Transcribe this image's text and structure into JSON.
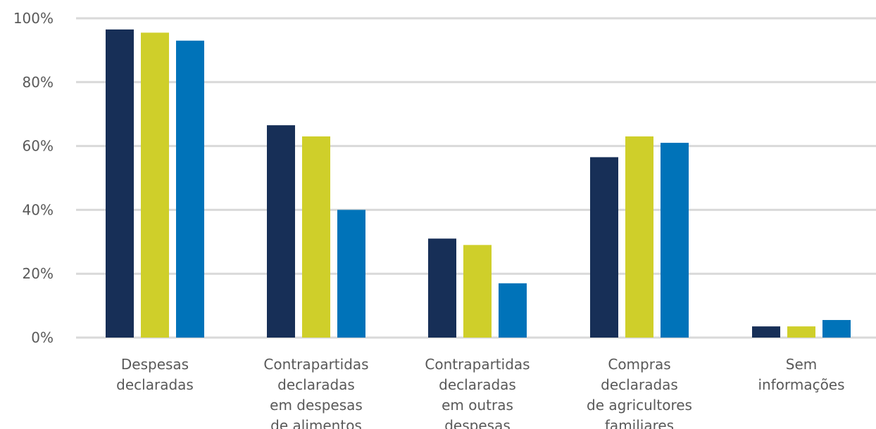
{
  "chart_data": {
    "type": "bar",
    "title": "",
    "xlabel": "",
    "ylabel": "",
    "ylim": [
      0,
      100
    ],
    "yticks": [
      "0%",
      "20%",
      "40%",
      "60%",
      "80%",
      "100%"
    ],
    "grid": true,
    "legend": "none",
    "categories": [
      [
        "Despesas",
        "declaradas"
      ],
      [
        "Contrapartidas",
        "declaradas",
        "em despesas",
        "de alimentos"
      ],
      [
        "Contrapartidas",
        "declaradas",
        "em outras",
        "despesas"
      ],
      [
        "Compras",
        "declaradas",
        "de agricultores",
        "familiares"
      ],
      [
        "Sem",
        "informações"
      ]
    ],
    "series": [
      {
        "color": "#172f57",
        "values": [
          96.5,
          66.5,
          31,
          56.5,
          3.5
        ]
      },
      {
        "color": "#cfcf2a",
        "values": [
          95.5,
          63,
          29,
          63,
          3.5
        ]
      },
      {
        "color": "#0073b9",
        "values": [
          93,
          40,
          17,
          61,
          5.5
        ]
      }
    ]
  }
}
